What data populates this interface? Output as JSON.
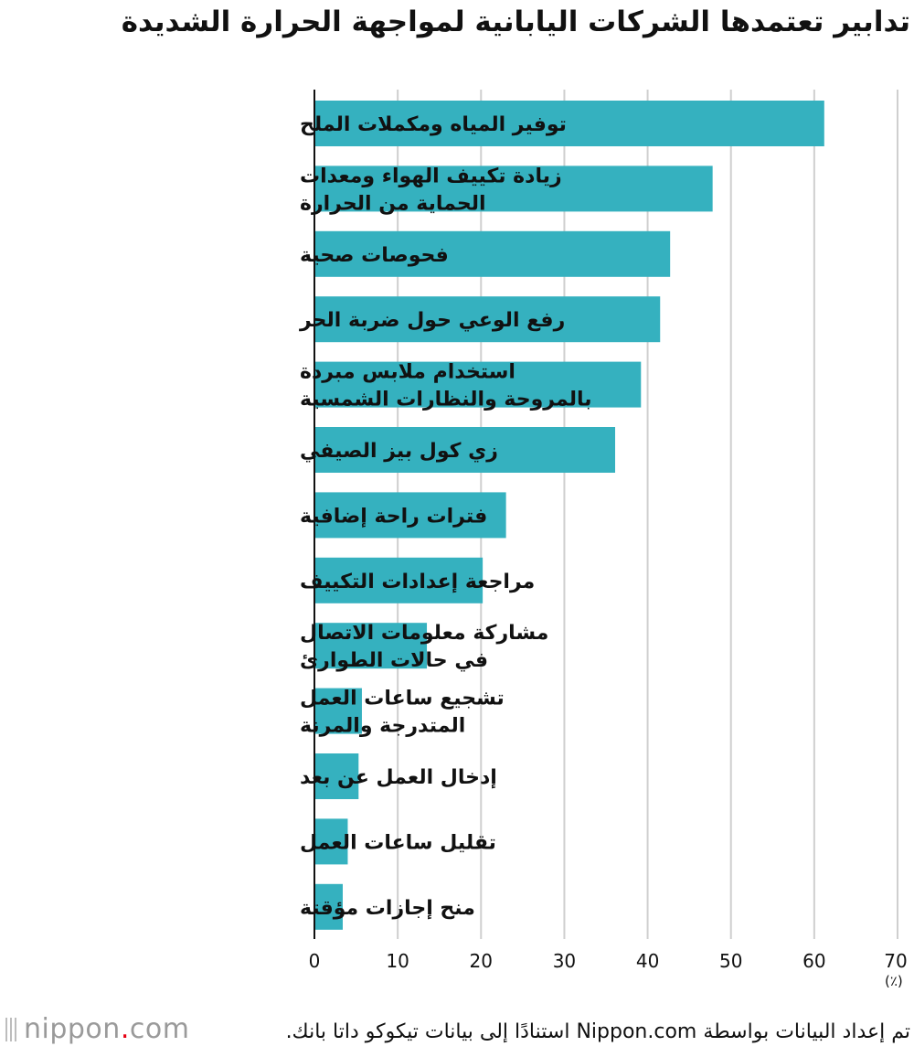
{
  "title": "تدابير تعتمدها الشركات اليابانية لمواجهة الحرارة الشديدة",
  "unit_label": "(٪)",
  "source": "تم إعداد البيانات بواسطة Nippon.com استنادًا إلى بيانات تيكوكو داتا بانك.",
  "brand": {
    "name": "nippon",
    "dot": ".",
    "tld": "com"
  },
  "chart_data": {
    "type": "bar",
    "orientation": "horizontal",
    "title": "تدابير تعتمدها الشركات اليابانية لمواجهة الحرارة الشديدة",
    "xlabel": "(٪)",
    "xlim": [
      0,
      70
    ],
    "xticks": [
      0,
      10,
      20,
      30,
      40,
      50,
      60,
      70
    ],
    "grid": true,
    "bar_color": "#35b1bf",
    "categories": [
      [
        "توفير المياه ومكملات الملح"
      ],
      [
        "زيادة تكييف الهواء ومعدات",
        "الحماية من الحرارة"
      ],
      [
        "فحوصات صحية"
      ],
      [
        "رفع الوعي حول ضربة الحر"
      ],
      [
        "استخدام ملابس مبردة",
        "بالمروحة والنظارات الشمسية"
      ],
      [
        "زي كول بيز الصيفي"
      ],
      [
        "فترات راحة إضافية"
      ],
      [
        "مراجعة إعدادات التكييف"
      ],
      [
        "مشاركة معلومات الاتصال",
        "في حالات الطوارئ"
      ],
      [
        "تشجيع ساعات العمل",
        "المتدرجة والمرنة"
      ],
      [
        "إدخال العمل عن بعد"
      ],
      [
        "تقليل ساعات العمل"
      ],
      [
        "منح إجازات مؤقتة"
      ]
    ],
    "values": [
      61.2,
      47.8,
      42.7,
      41.5,
      39.2,
      36.1,
      23.0,
      20.2,
      13.5,
      5.7,
      5.3,
      4.0,
      3.4
    ]
  }
}
